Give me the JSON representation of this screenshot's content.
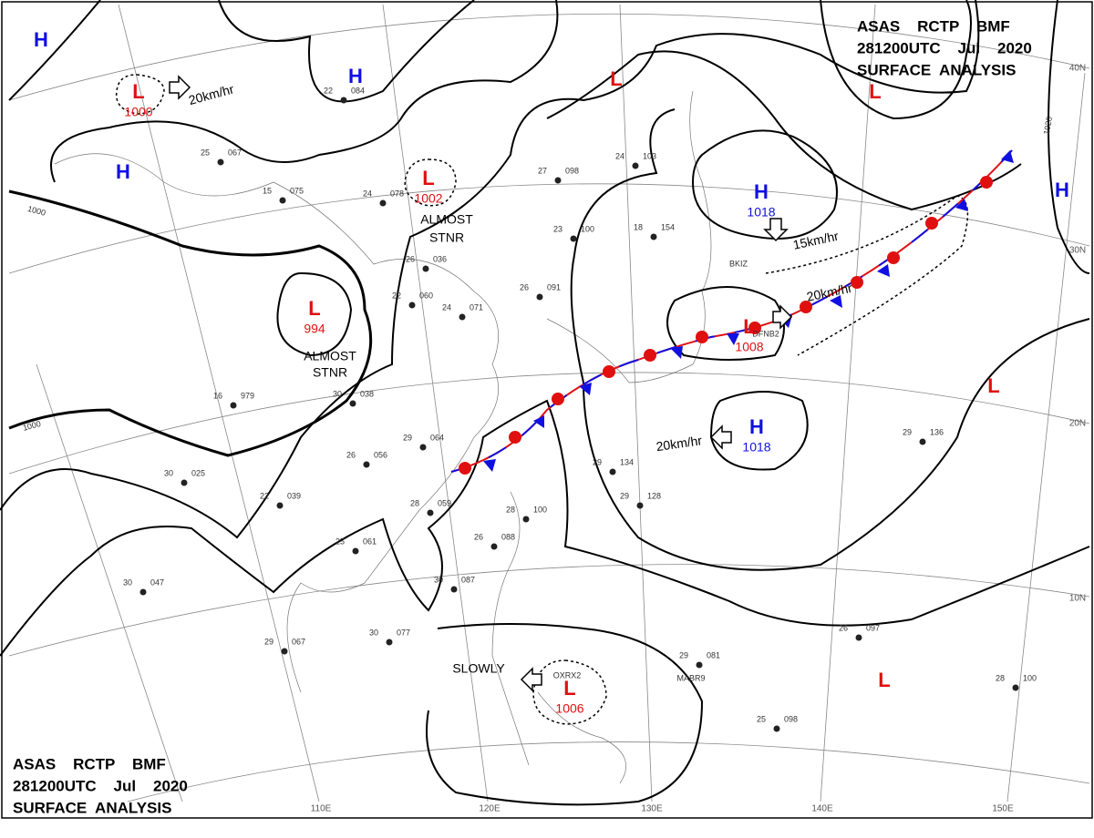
{
  "header": {
    "lines": [
      "ASAS    RCTP    BMF",
      "281200UTC    Jul    2020",
      "SURFACE  ANALYSIS"
    ]
  },
  "systems": [
    {
      "label": "H",
      "color": "#1010e0"
    },
    {
      "label": "L",
      "color": "#e01010",
      "pressure": "1000"
    },
    {
      "label": "H",
      "color": "#1010e0"
    },
    {
      "label": "H",
      "color": "#1010e0"
    },
    {
      "label": "L",
      "color": "#e01010",
      "pressure": "1002"
    },
    {
      "label": "L",
      "color": "#e01010",
      "pressure": "994"
    },
    {
      "label": "L",
      "color": "#e01010"
    },
    {
      "label": "L",
      "color": "#e01010"
    },
    {
      "label": "H",
      "color": "#1010e0",
      "pressure": "1018"
    },
    {
      "label": "H",
      "color": "#1010e0"
    },
    {
      "label": "L",
      "color": "#e01010",
      "pressure": "1008"
    },
    {
      "label": "H",
      "color": "#1010e0",
      "pressure": "1018"
    },
    {
      "label": "L",
      "color": "#e01010"
    },
    {
      "label": "L",
      "color": "#e01010",
      "pressure": "1006"
    },
    {
      "label": "L",
      "color": "#e01010"
    }
  ],
  "annotations": [
    "20km/hr",
    "ALMOST",
    "STNR",
    "ALMOST",
    "STNR",
    "15km/hr",
    "20km/hr",
    "20km/hr",
    "SLOWLY",
    "OXRX2",
    "BKIZ",
    "DFNB2",
    "MABR9"
  ],
  "isobar_labels": [
    "1000",
    "1000",
    "1020"
  ],
  "latitudes": [
    "40N",
    "30N",
    "20N",
    "10N"
  ],
  "longitudes": [
    "110E",
    "120E",
    "130E",
    "140E",
    "150E"
  ],
  "stations": [
    {
      "temp": "24",
      "pres": "078"
    },
    {
      "temp": "22",
      "pres": "084"
    },
    {
      "temp": "25",
      "pres": "067"
    },
    {
      "temp": "15",
      "pres": "075"
    },
    {
      "temp": "27",
      "pres": "098"
    },
    {
      "temp": "23",
      "pres": "100"
    },
    {
      "temp": "26",
      "pres": "036"
    },
    {
      "temp": "22",
      "pres": "060"
    },
    {
      "temp": "24",
      "pres": "071"
    },
    {
      "temp": "26",
      "pres": "091"
    },
    {
      "temp": "16",
      "pres": "979"
    },
    {
      "temp": "30",
      "pres": "038"
    },
    {
      "temp": "29",
      "pres": "064"
    },
    {
      "temp": "26",
      "pres": "056"
    },
    {
      "temp": "30",
      "pres": "025"
    },
    {
      "temp": "22",
      "pres": "039"
    },
    {
      "temp": "28",
      "pres": "059"
    },
    {
      "temp": "28",
      "pres": "100"
    },
    {
      "temp": "25",
      "pres": "061"
    },
    {
      "temp": "30",
      "pres": "047"
    },
    {
      "temp": "30",
      "pres": "087"
    },
    {
      "temp": "30",
      "pres": "077"
    },
    {
      "temp": "29",
      "pres": "067"
    },
    {
      "temp": "29",
      "pres": "081"
    },
    {
      "temp": "26",
      "pres": "097"
    },
    {
      "temp": "25",
      "pres": "098"
    },
    {
      "temp": "28",
      "pres": "100"
    },
    {
      "temp": "29",
      "pres": "134"
    },
    {
      "temp": "29",
      "pres": "128"
    },
    {
      "temp": "29",
      "pres": "136"
    },
    {
      "temp": "18",
      "pres": "154"
    },
    {
      "temp": "24",
      "pres": "103"
    },
    {
      "temp": "26",
      "pres": "088"
    }
  ]
}
